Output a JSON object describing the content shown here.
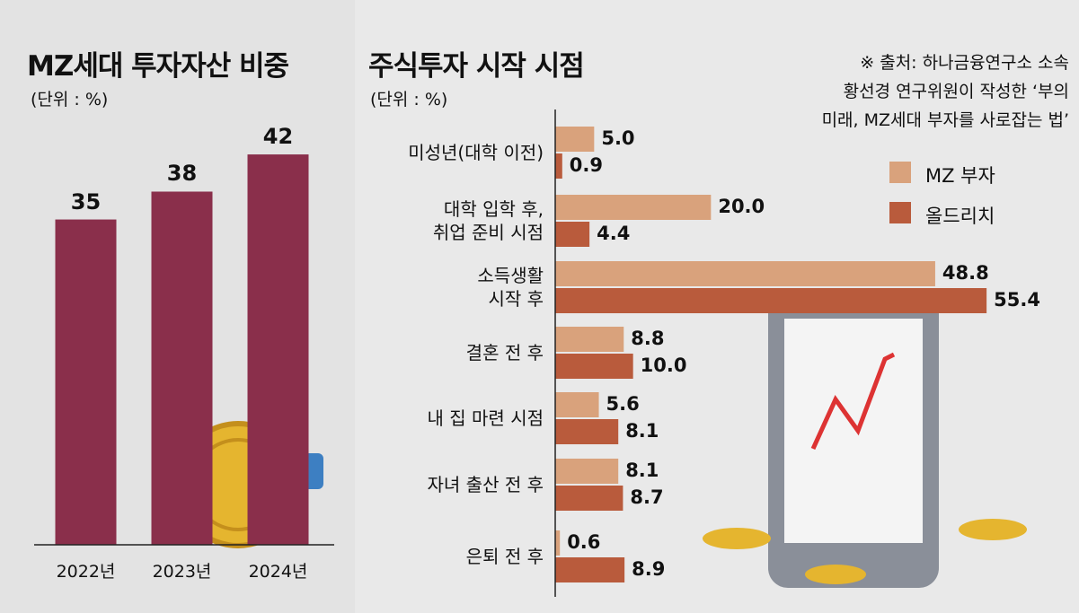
{
  "chart_data": [
    {
      "type": "bar",
      "title": "MZ세대 투자자산 비중",
      "subtitle": "(단위 : %)",
      "categories": [
        "2022년",
        "2023년",
        "2024년"
      ],
      "values": [
        35,
        38,
        42
      ],
      "color": "#8a2f4b",
      "ylim": [
        0,
        45
      ]
    },
    {
      "type": "hbar",
      "title": "주식투자 시작 시점",
      "subtitle": "(단위 : %)",
      "note": "※ 출처: 하나금융연구소 소속\n황선경 연구위원이 작성한 ‘부의\n미래, MZ세대 부자를 사로잡는 법’",
      "categories": [
        "미성년(대학 이전)",
        "대학 입학 후,\n취업 준비 시점",
        "소득생활\n시작 후",
        "결혼 전 후",
        "내 집 마련 시점",
        "자녀 출산 전 후",
        "은퇴 전 후"
      ],
      "series": [
        {
          "name": "MZ 부자",
          "color": "#d9a27c",
          "values": [
            5.0,
            20.0,
            48.8,
            8.8,
            5.6,
            8.1,
            0.6
          ],
          "value_labels": [
            "5.0",
            "20.0",
            "48.8",
            "8.8",
            "5.6",
            "8.1",
            "0.6"
          ]
        },
        {
          "name": "올드리치",
          "color": "#b95b3c",
          "values": [
            0.9,
            4.4,
            55.4,
            10.0,
            8.1,
            8.7,
            8.9
          ],
          "value_labels": [
            "0.9",
            "4.4",
            "55.4",
            "10.0",
            "8.1",
            "8.7",
            "8.9"
          ]
        }
      ],
      "xlim": [
        0,
        60
      ],
      "legend": "upper right"
    }
  ]
}
